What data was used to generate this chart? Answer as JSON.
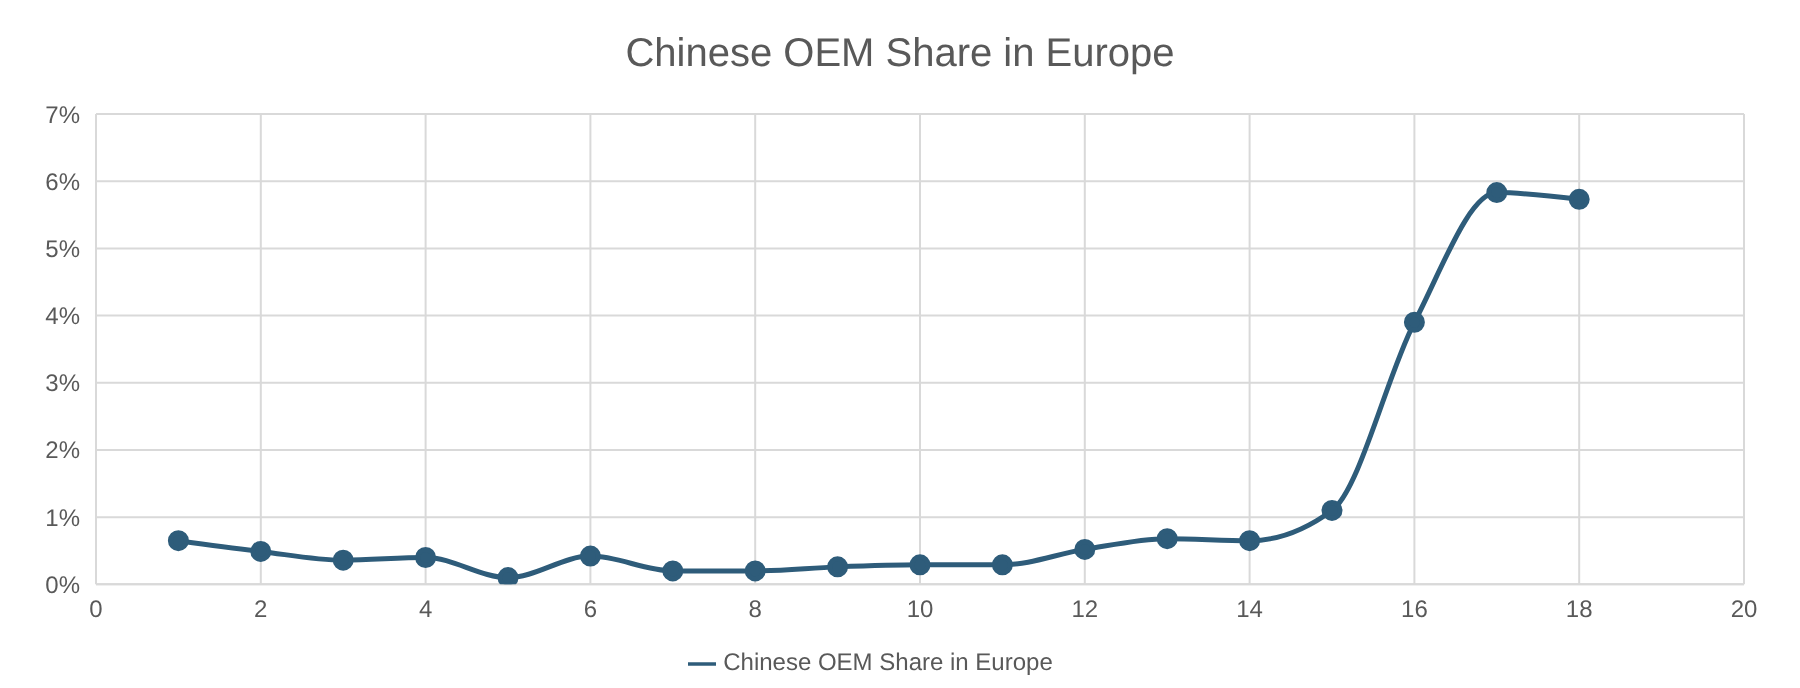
{
  "chart_data": {
    "type": "line",
    "title": "Chinese OEM Share in Europe",
    "x": [
      1,
      2,
      3,
      4,
      5,
      6,
      7,
      8,
      9,
      10,
      11,
      12,
      13,
      14,
      15,
      16,
      17,
      18
    ],
    "series": [
      {
        "name": "Chinese OEM Share in Europe",
        "color": "#2e5c7a",
        "values": [
          0.65,
          0.49,
          0.36,
          0.4,
          0.1,
          0.42,
          0.2,
          0.2,
          0.26,
          0.29,
          0.29,
          0.52,
          0.68,
          0.65,
          1.1,
          3.9,
          5.83,
          5.73
        ]
      }
    ],
    "xlim": [
      0,
      20
    ],
    "xticks": [
      0,
      2,
      4,
      6,
      8,
      10,
      12,
      14,
      16,
      18,
      20
    ],
    "ylim": [
      0,
      7
    ],
    "yticks": [
      {
        "value": 0,
        "label": "0%"
      },
      {
        "value": 1,
        "label": "1%"
      },
      {
        "value": 2,
        "label": "2%"
      },
      {
        "value": 3,
        "label": "3%"
      },
      {
        "value": 4,
        "label": "4%"
      },
      {
        "value": 5,
        "label": "5%"
      },
      {
        "value": 6,
        "label": "6%"
      },
      {
        "value": 7,
        "label": "7%"
      }
    ],
    "grid": true,
    "legend": "bottom",
    "marker": "circle",
    "line_style": "solid"
  }
}
